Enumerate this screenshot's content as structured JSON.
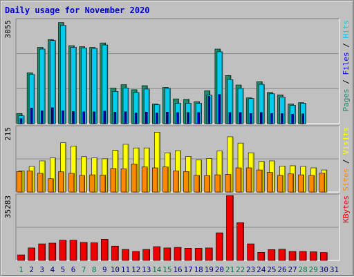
{
  "title": "Daily usage for November 2020",
  "colors": {
    "pages": "#1f8a6a",
    "files": "#0000dd",
    "hits": "#00ccee",
    "visits": "#ffff00",
    "sites": "#ff8800",
    "kbytes": "#ee0000",
    "plot_bg": "#c0c0c0",
    "weekend_day": "#00804a",
    "weekday_day": "#000080"
  },
  "chart_data": [
    {
      "type": "bar",
      "title": "Daily usage for November 2020",
      "legend_right": [
        "Pages",
        "Files",
        "Hits"
      ],
      "ytick_top": "3055",
      "ylim": [
        0,
        3055
      ],
      "grid": true,
      "categories": [
        "1",
        "2",
        "3",
        "4",
        "5",
        "6",
        "7",
        "8",
        "9",
        "10",
        "11",
        "12",
        "13",
        "14",
        "15",
        "16",
        "17",
        "18",
        "19",
        "20",
        "21",
        "22",
        "23",
        "24",
        "25",
        "26",
        "27",
        "28",
        "29",
        "30",
        "31"
      ],
      "series": [
        {
          "name": "Pages",
          "values": [
            300,
            1500,
            2250,
            2480,
            2980,
            2300,
            2270,
            2250,
            2380,
            1050,
            1150,
            1000,
            1120,
            580,
            1070,
            730,
            720,
            650,
            970,
            2200,
            1420,
            1140,
            760,
            1240,
            920,
            850,
            580,
            620,
            null,
            null,
            null
          ]
        },
        {
          "name": "Files",
          "values": [
            150,
            460,
            380,
            470,
            380,
            360,
            350,
            350,
            370,
            340,
            350,
            320,
            340,
            320,
            340,
            330,
            330,
            330,
            810,
            860,
            330,
            330,
            300,
            330,
            300,
            300,
            280,
            290,
            null,
            null,
            null
          ]
        },
        {
          "name": "Hits",
          "values": [
            230,
            1450,
            2200,
            2450,
            2900,
            2250,
            2230,
            2220,
            2320,
            950,
            1050,
            920,
            1020,
            560,
            1040,
            600,
            600,
            600,
            840,
            2120,
            1300,
            1040,
            740,
            1160,
            880,
            780,
            540,
            600,
            null,
            null,
            null
          ]
        }
      ]
    },
    {
      "type": "bar",
      "legend_right": [
        "Sites",
        "Visits"
      ],
      "ytick_top": "215",
      "ylim": [
        0,
        215
      ],
      "grid": true,
      "categories": [
        "1",
        "2",
        "3",
        "4",
        "5",
        "6",
        "7",
        "8",
        "9",
        "10",
        "11",
        "12",
        "13",
        "14",
        "15",
        "16",
        "17",
        "18",
        "19",
        "20",
        "21",
        "22",
        "23",
        "24",
        "25",
        "26",
        "27",
        "28",
        "29",
        "30",
        "31"
      ],
      "series": [
        {
          "name": "Sites",
          "values": [
            68,
            70,
            62,
            44,
            67,
            62,
            55,
            57,
            56,
            78,
            77,
            93,
            83,
            80,
            83,
            70,
            68,
            55,
            55,
            57,
            58,
            80,
            80,
            73,
            65,
            55,
            60,
            57,
            55,
            63,
            null
          ]
        },
        {
          "name": "Visits",
          "values": [
            70,
            85,
            103,
            113,
            163,
            152,
            117,
            113,
            110,
            138,
            158,
            146,
            146,
            198,
            130,
            137,
            118,
            106,
            111,
            136,
            183,
            162,
            130,
            101,
            103,
            86,
            87,
            85,
            80,
            73,
            null
          ]
        }
      ]
    },
    {
      "type": "bar",
      "legend_right": [
        "KBytes"
      ],
      "ytick_top": "35283",
      "ylim": [
        0,
        35283
      ],
      "grid": true,
      "categories": [
        "1",
        "2",
        "3",
        "4",
        "5",
        "6",
        "7",
        "8",
        "9",
        "10",
        "11",
        "12",
        "13",
        "14",
        "15",
        "16",
        "17",
        "18",
        "19",
        "20",
        "21",
        "22",
        "23",
        "24",
        "25",
        "26",
        "27",
        "28",
        "29",
        "30",
        "31"
      ],
      "series": [
        {
          "name": "KBytes",
          "values": [
            3000,
            6800,
            9000,
            9400,
            11000,
            11000,
            9800,
            9600,
            11500,
            7800,
            6000,
            4900,
            6000,
            7500,
            6800,
            7100,
            6600,
            6600,
            6800,
            15000,
            35283,
            20500,
            9000,
            4400,
            5900,
            6100,
            4900,
            4900,
            4700,
            4300,
            null
          ]
        }
      ]
    }
  ]
}
